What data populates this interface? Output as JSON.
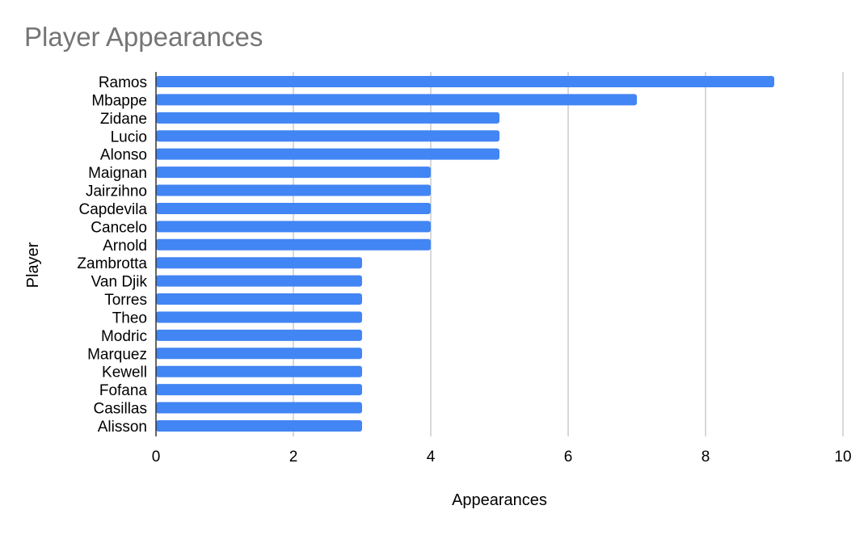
{
  "chart_data": {
    "type": "bar",
    "orientation": "horizontal",
    "title": "Player Appearances",
    "xlabel": "Appearances",
    "ylabel": "Player",
    "categories": [
      "Ramos",
      "Mbappe",
      "Zidane",
      "Lucio",
      "Alonso",
      "Maignan",
      "Jairzihno",
      "Capdevila",
      "Cancelo",
      "Arnold",
      "Zambrotta",
      "Van Djik",
      "Torres",
      "Theo",
      "Modric",
      "Marquez",
      "Kewell",
      "Fofana",
      "Casillas",
      "Alisson"
    ],
    "values": [
      9,
      7,
      5,
      5,
      5,
      4,
      4,
      4,
      4,
      4,
      3,
      3,
      3,
      3,
      3,
      3,
      3,
      3,
      3,
      3
    ],
    "xlim": [
      0,
      10
    ],
    "xticks": [
      "0",
      "2",
      "4",
      "6",
      "8",
      "10"
    ],
    "grid": true,
    "legend": "none",
    "colors": {
      "bar": "#4285f4",
      "title": "#757575",
      "grid": "#cccccc",
      "axis": "#333333"
    }
  }
}
